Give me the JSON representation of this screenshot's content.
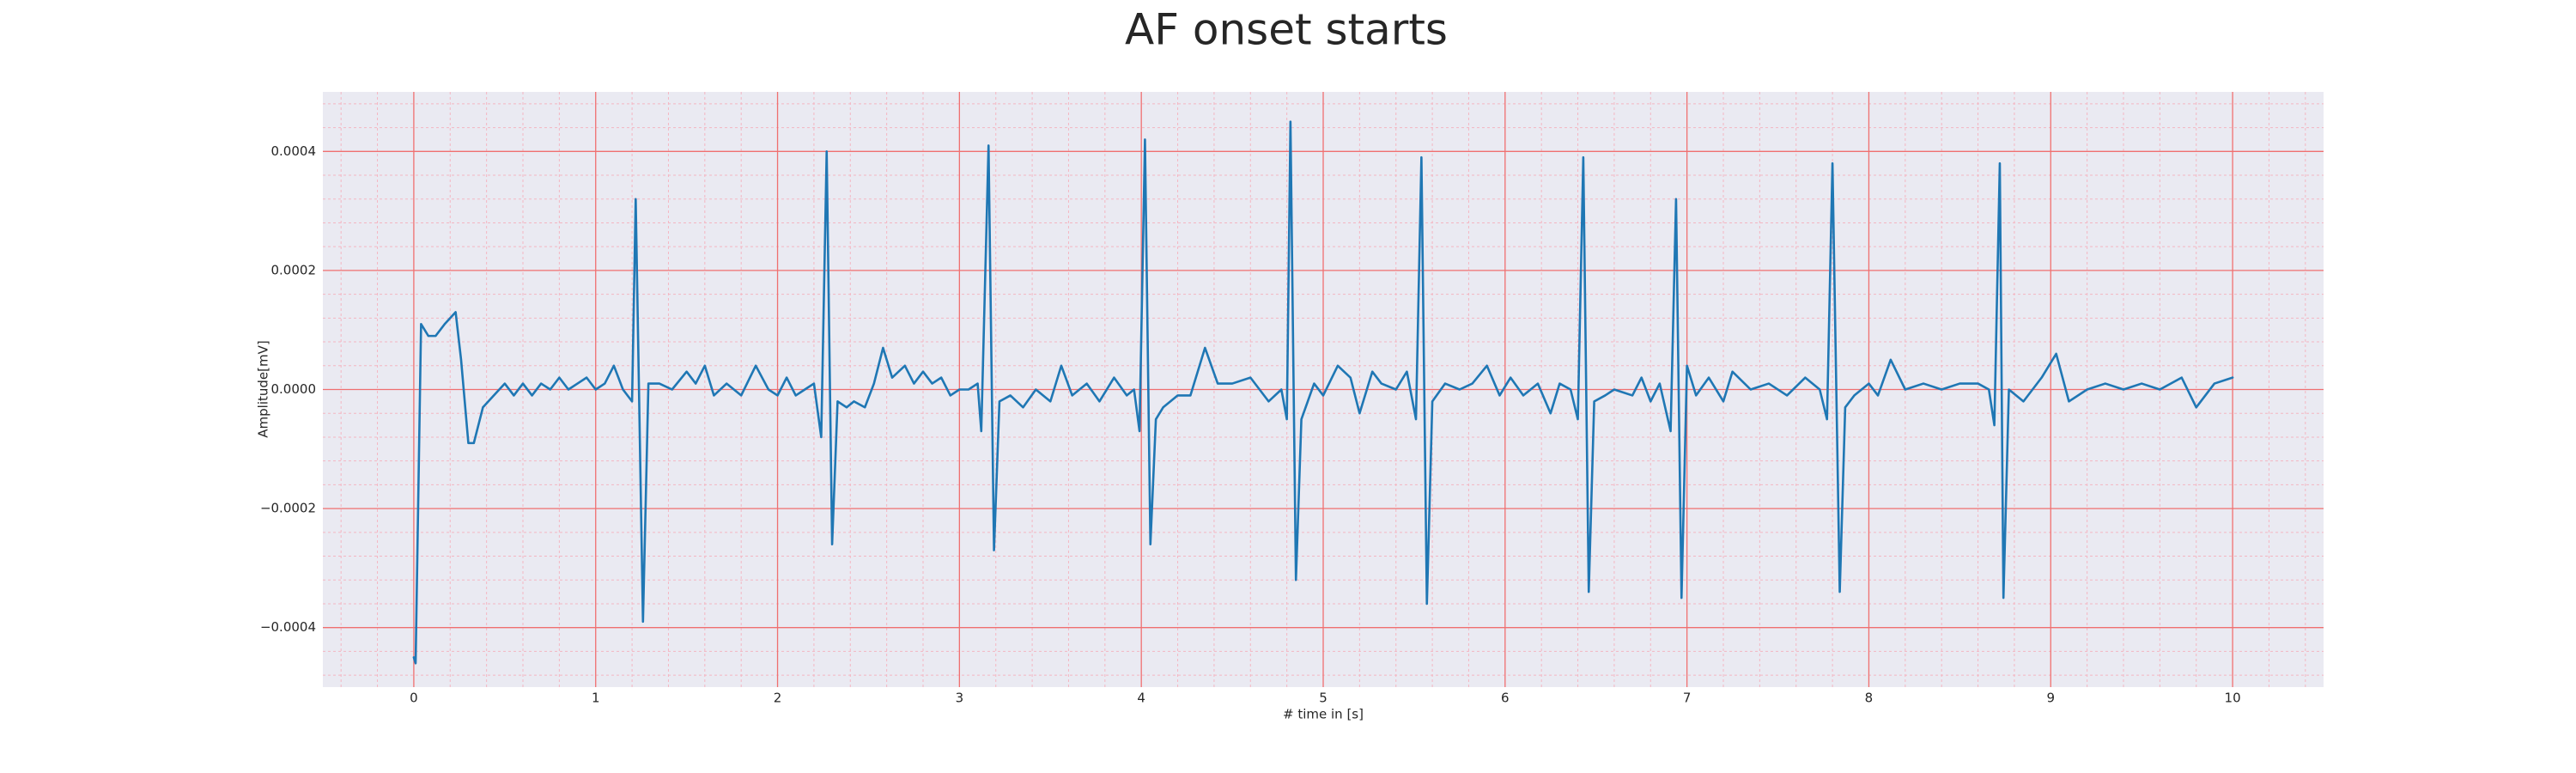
{
  "chart_data": {
    "type": "line",
    "title": "AF onset starts",
    "x_label": "# time in [s]",
    "y_label": "Amplitude[mV]",
    "color": "#1f77b4",
    "grid": true,
    "grid_color": "#f07070",
    "minor_grid": true,
    "minor_grid_color": "#f4b6c2",
    "background": "#eaeaf2",
    "xlim": [
      -0.5,
      10.5
    ],
    "ylim": [
      -0.0005,
      0.0005
    ],
    "xticks": [
      0,
      1,
      2,
      3,
      4,
      5,
      6,
      7,
      8,
      9,
      10
    ],
    "yticks": [
      {
        "value": -0.0004,
        "label": "−0.0004"
      },
      {
        "value": -0.0002,
        "label": "−0.0002"
      },
      {
        "value": 0,
        "label": "0.0000"
      },
      {
        "value": 0.0002,
        "label": "0.0002"
      },
      {
        "value": 0.0004,
        "label": "0.0004"
      }
    ],
    "x": [
      0.0,
      0.01,
      0.04,
      0.08,
      0.12,
      0.17,
      0.23,
      0.26,
      0.3,
      0.33,
      0.38,
      0.44,
      0.5,
      0.55,
      0.6,
      0.65,
      0.7,
      0.75,
      0.8,
      0.85,
      0.9,
      0.95,
      1.0,
      1.05,
      1.1,
      1.15,
      1.2,
      1.22,
      1.26,
      1.29,
      1.35,
      1.42,
      1.5,
      1.55,
      1.6,
      1.65,
      1.72,
      1.8,
      1.88,
      1.95,
      2.0,
      2.05,
      2.1,
      2.15,
      2.2,
      2.24,
      2.27,
      2.3,
      2.33,
      2.38,
      2.42,
      2.48,
      2.53,
      2.58,
      2.63,
      2.7,
      2.75,
      2.8,
      2.85,
      2.9,
      2.95,
      3.0,
      3.05,
      3.1,
      3.12,
      3.16,
      3.19,
      3.22,
      3.28,
      3.35,
      3.42,
      3.5,
      3.56,
      3.62,
      3.7,
      3.77,
      3.85,
      3.92,
      3.96,
      3.99,
      4.02,
      4.05,
      4.08,
      4.12,
      4.2,
      4.27,
      4.35,
      4.42,
      4.5,
      4.6,
      4.7,
      4.77,
      4.8,
      4.82,
      4.85,
      4.88,
      4.95,
      5.0,
      5.08,
      5.15,
      5.2,
      5.27,
      5.32,
      5.4,
      5.46,
      5.51,
      5.54,
      5.57,
      5.6,
      5.67,
      5.75,
      5.82,
      5.9,
      5.97,
      6.03,
      6.1,
      6.18,
      6.25,
      6.3,
      6.36,
      6.4,
      6.43,
      6.46,
      6.49,
      6.55,
      6.6,
      6.7,
      6.75,
      6.8,
      6.85,
      6.91,
      6.94,
      6.97,
      7.0,
      7.05,
      7.12,
      7.2,
      7.25,
      7.35,
      7.45,
      7.55,
      7.65,
      7.73,
      7.77,
      7.8,
      7.84,
      7.87,
      7.92,
      8.0,
      8.05,
      8.12,
      8.2,
      8.3,
      8.4,
      8.5,
      8.6,
      8.66,
      8.69,
      8.72,
      8.74,
      8.77,
      8.85,
      8.95,
      9.03,
      9.1,
      9.2,
      9.3,
      9.4,
      9.5,
      9.6,
      9.72,
      9.8,
      9.9,
      10.0
    ],
    "values": [
      -0.00045,
      -0.00046,
      0.00011,
      9e-05,
      9e-05,
      0.00011,
      0.00013,
      5e-05,
      -9e-05,
      -9e-05,
      -3e-05,
      -1e-05,
      1e-05,
      -1e-05,
      1e-05,
      -1e-05,
      1e-05,
      0.0,
      2e-05,
      0.0,
      1e-05,
      2e-05,
      0.0,
      1e-05,
      4e-05,
      0.0,
      -2e-05,
      0.00032,
      -0.00039,
      1e-05,
      1e-05,
      0.0,
      3e-05,
      1e-05,
      4e-05,
      -1e-05,
      1e-05,
      -1e-05,
      4e-05,
      0.0,
      -1e-05,
      2e-05,
      -1e-05,
      0.0,
      1e-05,
      -8e-05,
      0.0004,
      -0.00026,
      -2e-05,
      -3e-05,
      -2e-05,
      -3e-05,
      1e-05,
      7e-05,
      2e-05,
      4e-05,
      1e-05,
      3e-05,
      1e-05,
      2e-05,
      -1e-05,
      0.0,
      0.0,
      1e-05,
      -7e-05,
      0.00041,
      -0.00027,
      -2e-05,
      -1e-05,
      -3e-05,
      0.0,
      -2e-05,
      4e-05,
      -1e-05,
      1e-05,
      -2e-05,
      2e-05,
      -1e-05,
      0.0,
      -7e-05,
      0.00042,
      -0.00026,
      -5e-05,
      -3e-05,
      -1e-05,
      -1e-05,
      7e-05,
      1e-05,
      1e-05,
      2e-05,
      -2e-05,
      0.0,
      -5e-05,
      0.00045,
      -0.00032,
      -5e-05,
      1e-05,
      -1e-05,
      4e-05,
      2e-05,
      -4e-05,
      3e-05,
      1e-05,
      0.0,
      3e-05,
      -5e-05,
      0.00039,
      -0.00036,
      -2e-05,
      1e-05,
      0.0,
      1e-05,
      4e-05,
      -1e-05,
      2e-05,
      -1e-05,
      1e-05,
      -4e-05,
      1e-05,
      0.0,
      -5e-05,
      0.00039,
      -0.00034,
      -2e-05,
      -1e-05,
      0.0,
      -1e-05,
      2e-05,
      -2e-05,
      1e-05,
      -7e-05,
      0.00032,
      -0.00035,
      4e-05,
      -1e-05,
      2e-05,
      -2e-05,
      3e-05,
      0.0,
      1e-05,
      -1e-05,
      2e-05,
      0.0,
      -5e-05,
      0.00038,
      -0.00034,
      -3e-05,
      -1e-05,
      1e-05,
      -1e-05,
      5e-05,
      0.0,
      1e-05,
      0.0,
      1e-05,
      1e-05,
      0.0,
      -6e-05,
      0.00038,
      -0.00035,
      0.0,
      -2e-05,
      2e-05,
      6e-05,
      -2e-05,
      0.0,
      1e-05,
      0.0,
      1e-05,
      0.0,
      2e-05,
      -3e-05,
      1e-05,
      2e-05
    ]
  }
}
